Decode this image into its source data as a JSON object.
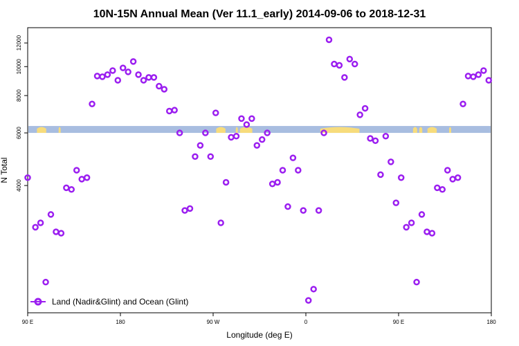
{
  "chart_data": {
    "type": "scatter",
    "title": "10N-15N Annual Mean (Ver 11.1_early)   2014-09-06 to 2018-12-31",
    "xlabel": "Longitude (deg E)",
    "ylabel": "N Total",
    "x_range": [
      90,
      540
    ],
    "y_scale": "log",
    "y_range": [
      1500,
      13500
    ],
    "x_ticks": [
      {
        "value": 90,
        "label": "90 E"
      },
      {
        "value": 180,
        "label": "180"
      },
      {
        "value": 270,
        "label": "90 W"
      },
      {
        "value": 360,
        "label": "0"
      },
      {
        "value": 450,
        "label": "90 E"
      },
      {
        "value": 540,
        "label": "180"
      }
    ],
    "y_ticks": [
      {
        "value": 4000,
        "label": "4000"
      },
      {
        "value": 6000,
        "label": "6000"
      },
      {
        "value": 8000,
        "label": "8000"
      },
      {
        "value": 10000,
        "label": "10000"
      },
      {
        "value": 12000,
        "label": "12000"
      }
    ],
    "series": [
      {
        "name": "Land (Nadir&Glint) and Ocean (Glint)",
        "color": "#9b1ef0",
        "points": [
          [
            90,
            4250
          ],
          [
            97.5,
            2900
          ],
          [
            102.5,
            3000
          ],
          [
            107.5,
            1900
          ],
          [
            112.5,
            3200
          ],
          [
            117.5,
            2800
          ],
          [
            122.5,
            2770
          ],
          [
            127.5,
            3930
          ],
          [
            132.5,
            3880
          ],
          [
            137.5,
            4500
          ],
          [
            142.5,
            4200
          ],
          [
            147.5,
            4250
          ],
          [
            152.5,
            7500
          ],
          [
            157.5,
            9300
          ],
          [
            162.5,
            9250
          ],
          [
            167.5,
            9400
          ],
          [
            172.5,
            9700
          ],
          [
            177.5,
            9000
          ],
          [
            182.5,
            9900
          ],
          [
            187.5,
            9600
          ],
          [
            192.5,
            10400
          ],
          [
            197.5,
            9400
          ],
          [
            202.5,
            9000
          ],
          [
            207.5,
            9200
          ],
          [
            212.5,
            9200
          ],
          [
            217.5,
            8600
          ],
          [
            222.5,
            8400
          ],
          [
            227.5,
            7100
          ],
          [
            232.5,
            7150
          ],
          [
            237.5,
            6000
          ],
          [
            242.5,
            3300
          ],
          [
            247.5,
            3350
          ],
          [
            252.5,
            5000
          ],
          [
            257.5,
            5450
          ],
          [
            262.5,
            6000
          ],
          [
            267.5,
            5000
          ],
          [
            272.5,
            7000
          ],
          [
            277.5,
            3000
          ],
          [
            282.5,
            4100
          ],
          [
            287.5,
            5800
          ],
          [
            292.5,
            5850
          ],
          [
            297.5,
            6700
          ],
          [
            302.5,
            6400
          ],
          [
            307.5,
            6700
          ],
          [
            312.5,
            5450
          ],
          [
            317.5,
            5700
          ],
          [
            322.5,
            6000
          ],
          [
            327.5,
            4050
          ],
          [
            332.5,
            4100
          ],
          [
            337.5,
            4500
          ],
          [
            342.5,
            3400
          ],
          [
            347.5,
            4950
          ],
          [
            352.5,
            4500
          ],
          [
            357.5,
            3300
          ],
          [
            362.5,
            1650
          ],
          [
            367.5,
            1800
          ],
          [
            372.5,
            3300
          ],
          [
            377.5,
            6000
          ],
          [
            382.5,
            12300
          ],
          [
            387.5,
            10200
          ],
          [
            392.5,
            10100
          ],
          [
            397.5,
            9200
          ],
          [
            402.5,
            10600
          ],
          [
            407.5,
            10200
          ],
          [
            412.5,
            6900
          ],
          [
            417.5,
            7250
          ],
          [
            422.5,
            5750
          ],
          [
            427.5,
            5650
          ],
          [
            432.5,
            4350
          ],
          [
            437.5,
            5850
          ],
          [
            442.5,
            4800
          ],
          [
            447.5,
            3500
          ],
          [
            452.5,
            4250
          ],
          [
            457.5,
            2900
          ],
          [
            462.5,
            3000
          ],
          [
            467.5,
            1900
          ],
          [
            472.5,
            3200
          ],
          [
            477.5,
            2800
          ],
          [
            482.5,
            2770
          ],
          [
            487.5,
            3930
          ],
          [
            492.5,
            3880
          ],
          [
            497.5,
            4500
          ],
          [
            502.5,
            4200
          ],
          [
            507.5,
            4250
          ],
          [
            512.5,
            7500
          ],
          [
            517.5,
            9300
          ],
          [
            522.5,
            9250
          ],
          [
            527.5,
            9400
          ],
          [
            532.5,
            9700
          ],
          [
            537.5,
            9000
          ]
        ]
      }
    ],
    "band": {
      "y_value": 6000,
      "ocean_color": "#a8bde0",
      "land_color": "#f7dc7c",
      "land_segments_lon": [
        [
          99,
          108
        ],
        [
          120,
          122
        ],
        [
          273,
          282
        ],
        [
          292,
          294
        ],
        [
          296,
          308
        ],
        [
          374,
          412
        ],
        [
          464,
          468
        ],
        [
          470,
          473
        ],
        [
          478,
          487
        ],
        [
          499,
          501
        ]
      ]
    },
    "legend": {
      "position": "bottom-left"
    }
  }
}
